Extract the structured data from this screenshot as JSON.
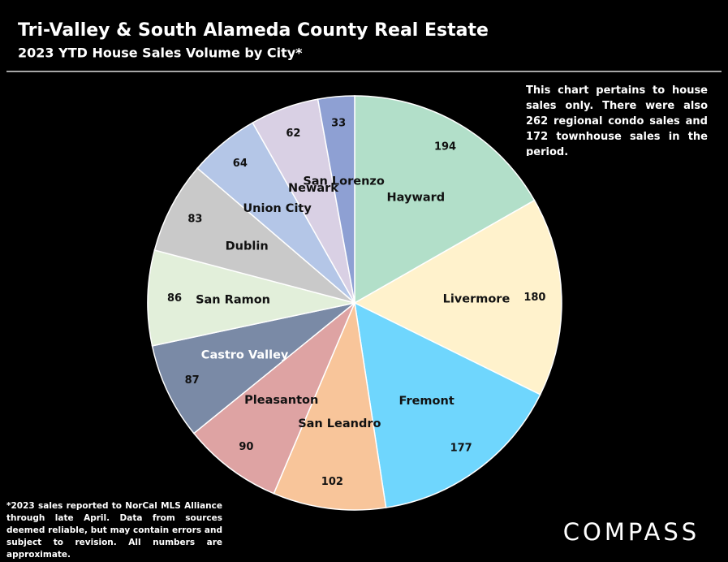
{
  "chart_data": {
    "type": "pie",
    "title": "Tri-Valley & South Alameda County Real Estate",
    "subtitle": "2023 YTD House Sales Volume by City*",
    "note": "This chart pertains to house sales only. There were also 262 regional condo sales and 172 townhouse sales in the period.",
    "footnote": "*2023 sales reported to NorCal MLS Alliance through late April. Data from sources deemed reliable, but may contain errors and subject to revision. All numbers are approximate.",
    "brand": "COMPASS",
    "categories": [
      "Hayward",
      "Livermore",
      "Fremont",
      "San Leandro",
      "Pleasanton",
      "Castro Valley",
      "San Ramon",
      "Dublin",
      "Union City",
      "Newark",
      "San Lorenzo"
    ],
    "values": [
      194,
      180,
      177,
      102,
      90,
      87,
      86,
      83,
      64,
      62,
      33
    ],
    "colors": [
      "#b2dfc9",
      "#fff2cc",
      "#6fd6fd",
      "#f8c59a",
      "#dea3a3",
      "#7a8aa6",
      "#e2efda",
      "#c9c9c9",
      "#b4c6e7",
      "#d9d0e4",
      "#8ea0d3"
    ]
  }
}
